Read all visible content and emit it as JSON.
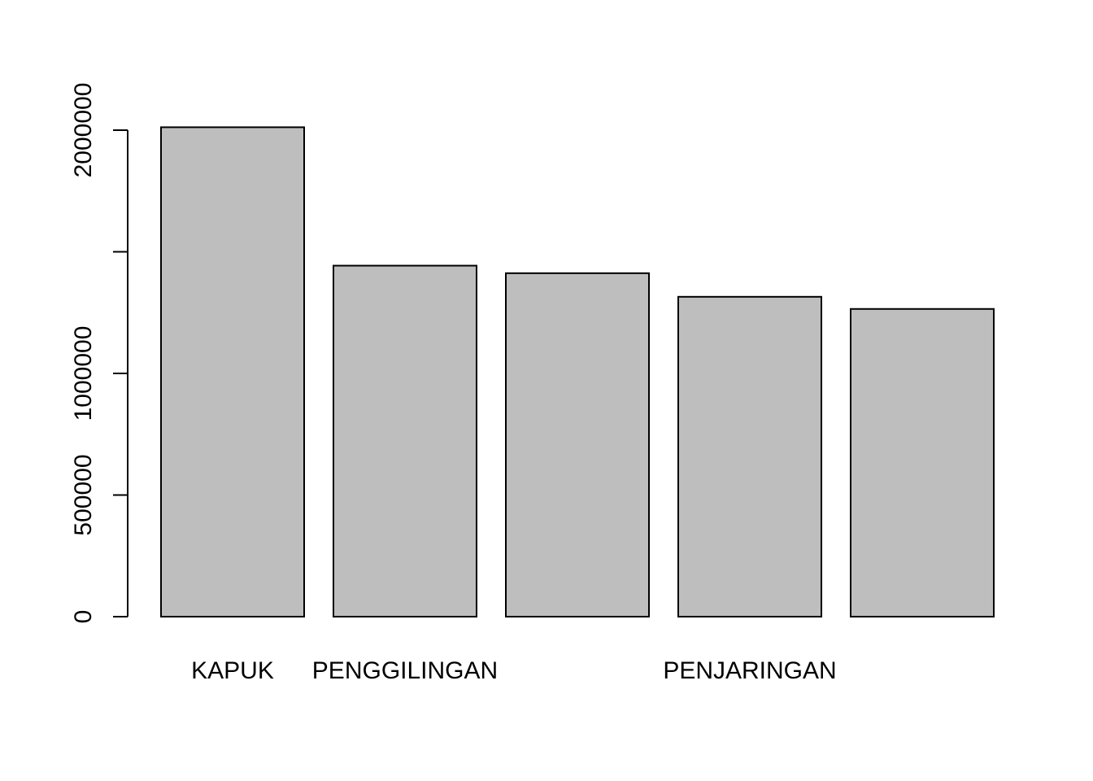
{
  "chart_data": {
    "type": "bar",
    "title": "",
    "xlabel": "",
    "ylabel": "",
    "categories": [
      "KAPUK",
      "PENGGILINGAN",
      "",
      "PENJARINGAN",
      ""
    ],
    "values": [
      2012000,
      1443000,
      1412000,
      1315000,
      1265000
    ],
    "ylim": [
      0,
      2000000
    ],
    "yticks": [
      0,
      500000,
      1000000,
      2000000
    ],
    "ytick_labels": [
      "0",
      "500000",
      "1000000",
      "2000000"
    ],
    "ytick_marks": [
      0,
      500000,
      1000000,
      1500000,
      2000000
    ],
    "bar_fill": "#bebebe",
    "bar_stroke": "#000000",
    "grid": false
  }
}
